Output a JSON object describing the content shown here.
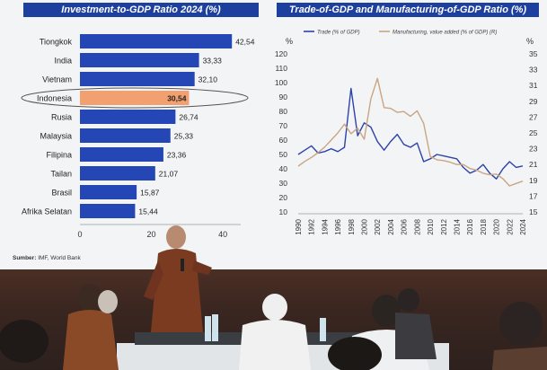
{
  "left_panel": {
    "title": "Investment-to-GDP Ratio 2024 (%)",
    "source_label": "Sumber:",
    "source_text": "IMF, World Bank",
    "highlight": "Indonesia",
    "colors": {
      "bar": "#2447b5",
      "highlight": "#f3a071",
      "title_bg": "#1d3f9e"
    }
  },
  "right_panel": {
    "title": "Trade-of-GDP and Manufacturing-of-GDP Ratio (%)",
    "left_unit": "%",
    "right_unit": "%",
    "legend": [
      "Trade (% of GDP)",
      "Manufacturing, value added (% of GDP) (R)"
    ],
    "colors": {
      "trade": "#2e43a8",
      "manufacturing": "#c9a582"
    }
  },
  "chart_data": [
    {
      "type": "bar",
      "orientation": "horizontal",
      "title": "Investment-to-GDP Ratio 2024 (%)",
      "categories": [
        "Tiongkok",
        "India",
        "Vietnam",
        "Indonesia",
        "Rusia",
        "Malaysia",
        "Filipina",
        "Tailan",
        "Brasil",
        "Afrika Selatan"
      ],
      "values": [
        42.54,
        33.33,
        32.1,
        30.54,
        26.74,
        25.33,
        23.36,
        21.07,
        15.87,
        15.44
      ],
      "value_labels": [
        "42,54",
        "33,33",
        "32,10",
        "30,54",
        "26,74",
        "25,33",
        "23,36",
        "21,07",
        "15,87",
        "15,44"
      ],
      "xticks": [
        "0",
        "20",
        "40"
      ],
      "xlim": [
        0,
        45
      ],
      "grid": false
    },
    {
      "type": "line",
      "title": "Trade-of-GDP and Manufacturing-of-GDP Ratio (%)",
      "ylim_left": [
        10,
        120
      ],
      "ylim_right": [
        15,
        35
      ],
      "yticks_left": [
        "10",
        "20",
        "30",
        "40",
        "50",
        "60",
        "70",
        "80",
        "90",
        "100",
        "110",
        "120"
      ],
      "yticks_right": [
        "15",
        "17",
        "19",
        "21",
        "23",
        "25",
        "27",
        "29",
        "31",
        "33",
        "35"
      ],
      "xticks": [
        "1990",
        "1992",
        "1994",
        "1996",
        "1998",
        "2000",
        "2002",
        "2004",
        "2006",
        "2008",
        "2010",
        "2012",
        "2014",
        "2016",
        "2018",
        "2020",
        "2022",
        "2024"
      ],
      "legend_position": "top",
      "series": [
        {
          "name": "Trade (% of GDP)",
          "axis": "left",
          "x": [
            1990,
            1991,
            1992,
            1993,
            1994,
            1995,
            1996,
            1997,
            1998,
            1999,
            2000,
            2001,
            2002,
            2003,
            2004,
            2005,
            2006,
            2007,
            2008,
            2009,
            2010,
            2011,
            2012,
            2013,
            2014,
            2015,
            2016,
            2017,
            2018,
            2019,
            2020,
            2021,
            2022,
            2023,
            2024
          ],
          "y": [
            50,
            53,
            56,
            51,
            52,
            54,
            52,
            55,
            96,
            63,
            72,
            69,
            59,
            53,
            59,
            64,
            57,
            55,
            58,
            45,
            47,
            50,
            49,
            48,
            47,
            41,
            37,
            39,
            43,
            37,
            33,
            40,
            45,
            41,
            42
          ]
        },
        {
          "name": "Manufacturing, value added (% of GDP) (R)",
          "axis": "right",
          "x": [
            1990,
            1991,
            1992,
            1993,
            1994,
            1995,
            1996,
            1997,
            1998,
            1999,
            2000,
            2001,
            2002,
            2003,
            2004,
            2005,
            2006,
            2007,
            2008,
            2009,
            2010,
            2011,
            2012,
            2013,
            2014,
            2015,
            2016,
            2017,
            2018,
            2019,
            2020,
            2021,
            2022,
            2023,
            2024
          ],
          "y": [
            20.8,
            21.4,
            21.9,
            22.5,
            23.2,
            24.1,
            25.0,
            26.1,
            24.9,
            25.6,
            24.2,
            29.3,
            31.9,
            28.2,
            28.1,
            27.6,
            27.7,
            27.1,
            27.8,
            26.2,
            22.0,
            21.6,
            21.5,
            21.3,
            21.0,
            21.0,
            20.5,
            20.3,
            19.9,
            19.7,
            19.8,
            19.2,
            18.3,
            18.6,
            18.9
          ]
        }
      ]
    }
  ]
}
